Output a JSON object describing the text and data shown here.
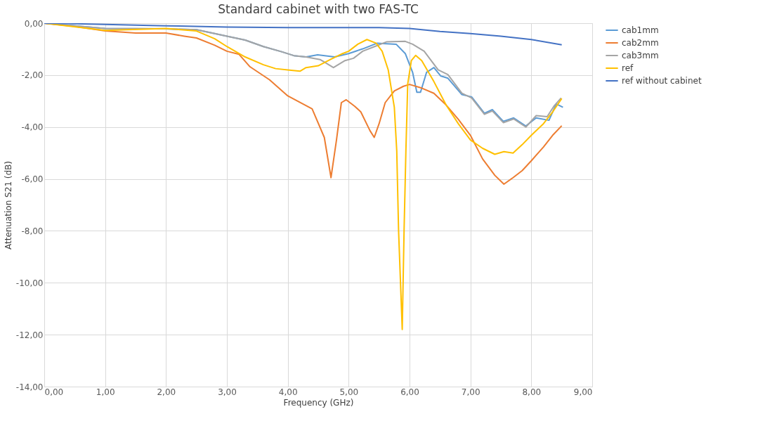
{
  "chart_data": {
    "type": "line",
    "title": "Standard cabinet with two FAS-TC",
    "xlabel": "Frequency (GHz)",
    "ylabel": "Attenuation S21 (dB)",
    "xlim": [
      0,
      9
    ],
    "xticks": [
      {
        "value": 0,
        "label": "0,00"
      },
      {
        "value": 1,
        "label": "1,00"
      },
      {
        "value": 2,
        "label": "2,00"
      },
      {
        "value": 3,
        "label": "3,00"
      },
      {
        "value": 4,
        "label": "4,00"
      },
      {
        "value": 5,
        "label": "5,00"
      },
      {
        "value": 6,
        "label": "6,00"
      },
      {
        "value": 7,
        "label": "7,00"
      },
      {
        "value": 8,
        "label": "8,00"
      },
      {
        "value": 9,
        "label": "9,00"
      }
    ],
    "ylim": [
      -14,
      0
    ],
    "yticks": [
      {
        "value": -14,
        "label": "-14,00"
      },
      {
        "value": -12,
        "label": "-12,00"
      },
      {
        "value": -10,
        "label": "-10,00"
      },
      {
        "value": -8,
        "label": "-8,00"
      },
      {
        "value": -6,
        "label": "-6,00"
      },
      {
        "value": -4,
        "label": "-4,00"
      },
      {
        "value": -2,
        "label": "-2,00"
      },
      {
        "value": 0,
        "label": "0,00"
      }
    ],
    "grid": true,
    "legend": "right",
    "marker": "none",
    "line_style": "solid",
    "series": [
      {
        "name": "cab1mm",
        "color": "#5b9bd5",
        "x": [
          0,
          1,
          2,
          2.5,
          2.8,
          3.0,
          3.3,
          3.6,
          3.9,
          4.1,
          4.3,
          4.49,
          4.77,
          5.0,
          5.23,
          5.47,
          5.78,
          5.93,
          6.05,
          6.12,
          6.18,
          6.28,
          6.4,
          6.51,
          6.63,
          6.86,
          7.02,
          7.23,
          7.36,
          7.54,
          7.71,
          7.91,
          8.08,
          8.29,
          8.41,
          8.52
        ],
        "values": [
          0,
          -0.2,
          -0.22,
          -0.25,
          -0.4,
          -0.5,
          -0.65,
          -0.9,
          -1.1,
          -1.25,
          -1.3,
          -1.22,
          -1.3,
          -1.17,
          -0.99,
          -0.77,
          -0.81,
          -1.17,
          -1.89,
          -2.66,
          -2.66,
          -1.89,
          -1.71,
          -2.03,
          -2.12,
          -2.75,
          -2.84,
          -3.47,
          -3.33,
          -3.78,
          -3.65,
          -3.96,
          -3.65,
          -3.74,
          -3.11,
          -3.24
        ]
      },
      {
        "name": "cab2mm",
        "color": "#ed7d31",
        "x": [
          0,
          0.5,
          1.0,
          1.5,
          2.0,
          2.3,
          2.5,
          2.8,
          3.0,
          3.2,
          3.38,
          3.7,
          4.0,
          4.2,
          4.4,
          4.6,
          4.71,
          4.8,
          4.88,
          4.96,
          5.1,
          5.2,
          5.35,
          5.42,
          5.5,
          5.6,
          5.75,
          5.9,
          6.0,
          6.2,
          6.4,
          6.6,
          6.8,
          7.0,
          7.2,
          7.4,
          7.55,
          7.7,
          7.85,
          8.0,
          8.2,
          8.35,
          8.5
        ],
        "values": [
          0,
          -0.12,
          -0.3,
          -0.38,
          -0.38,
          -0.5,
          -0.57,
          -0.85,
          -1.08,
          -1.2,
          -1.68,
          -2.18,
          -2.8,
          -3.05,
          -3.3,
          -4.4,
          -5.95,
          -4.5,
          -3.06,
          -2.95,
          -3.2,
          -3.42,
          -4.14,
          -4.4,
          -3.87,
          -3.06,
          -2.61,
          -2.43,
          -2.36,
          -2.5,
          -2.7,
          -3.15,
          -3.7,
          -4.32,
          -5.23,
          -5.86,
          -6.2,
          -5.95,
          -5.68,
          -5.3,
          -4.77,
          -4.32,
          -3.95
        ]
      },
      {
        "name": "cab3mm",
        "color": "#a5a5a5",
        "x": [
          0,
          1,
          2,
          2.5,
          2.8,
          3.0,
          3.3,
          3.6,
          3.9,
          4.1,
          4.3,
          4.53,
          4.75,
          4.94,
          5.08,
          5.23,
          5.47,
          5.62,
          5.93,
          6.05,
          6.24,
          6.47,
          6.63,
          6.86,
          7.02,
          7.23,
          7.36,
          7.54,
          7.71,
          7.91,
          8.08,
          8.26,
          8.37,
          8.49
        ],
        "values": [
          0,
          -0.2,
          -0.22,
          -0.25,
          -0.4,
          -0.5,
          -0.65,
          -0.9,
          -1.1,
          -1.25,
          -1.3,
          -1.4,
          -1.71,
          -1.44,
          -1.35,
          -1.08,
          -0.86,
          -0.72,
          -0.7,
          -0.81,
          -1.08,
          -1.8,
          -1.98,
          -2.7,
          -2.88,
          -3.51,
          -3.38,
          -3.83,
          -3.69,
          -4.0,
          -3.56,
          -3.6,
          -3.2,
          -2.88
        ]
      },
      {
        "name": "ref",
        "color": "#ffc000",
        "x": [
          0,
          1.0,
          2.0,
          2.5,
          2.8,
          3.0,
          3.3,
          3.6,
          3.8,
          4.0,
          4.2,
          4.3,
          4.5,
          4.7,
          4.9,
          5.0,
          5.15,
          5.3,
          5.45,
          5.55,
          5.65,
          5.75,
          5.79,
          5.82,
          5.88,
          5.91,
          5.94,
          5.97,
          6.03,
          6.1,
          6.2,
          6.4,
          6.6,
          6.8,
          7.0,
          7.2,
          7.4,
          7.55,
          7.7,
          7.85,
          8.0,
          8.2,
          8.35,
          8.5
        ],
        "values": [
          0,
          -0.28,
          -0.2,
          -0.3,
          -0.6,
          -0.9,
          -1.3,
          -1.6,
          -1.75,
          -1.8,
          -1.85,
          -1.71,
          -1.64,
          -1.4,
          -1.17,
          -1.08,
          -0.81,
          -0.63,
          -0.77,
          -1.08,
          -1.8,
          -3.24,
          -4.93,
          -8.0,
          -11.8,
          -8.0,
          -4.93,
          -2.34,
          -1.44,
          -1.24,
          -1.44,
          -2.25,
          -3.15,
          -3.87,
          -4.5,
          -4.82,
          -5.05,
          -4.95,
          -5.0,
          -4.68,
          -4.32,
          -3.87,
          -3.42,
          -2.9
        ]
      },
      {
        "name": "ref without cabinet",
        "color": "#4472c4",
        "x": [
          0,
          0.5,
          1,
          2,
          3,
          4,
          5,
          5.5,
          6,
          6.5,
          7.0,
          7.5,
          8.0,
          8.5
        ],
        "values": [
          0,
          -0.02,
          -0.05,
          -0.1,
          -0.15,
          -0.17,
          -0.17,
          -0.17,
          -0.2,
          -0.32,
          -0.4,
          -0.5,
          -0.63,
          -0.83
        ]
      }
    ]
  }
}
